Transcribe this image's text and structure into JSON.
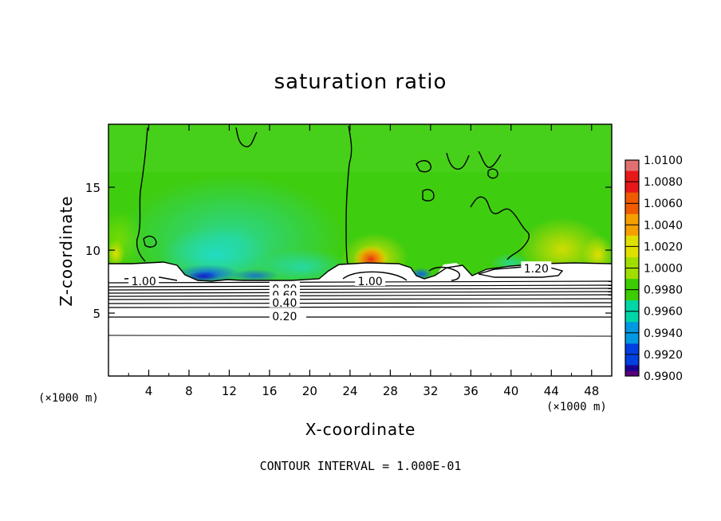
{
  "chart_data": {
    "type": "heatmap",
    "title": "saturation ratio",
    "xlabel": "X-coordinate",
    "ylabel": "Z-coordinate",
    "x_units": "(×1000 m)",
    "y_units": "(×1000 m)",
    "xlim": [
      0,
      50
    ],
    "ylim": [
      0,
      20
    ],
    "x_ticks": [
      "4",
      "8",
      "12",
      "16",
      "20",
      "24",
      "28",
      "32",
      "36",
      "40",
      "44",
      "48"
    ],
    "y_ticks": [
      "5",
      "10",
      "15"
    ],
    "colorbar": {
      "labels": [
        "1.0100",
        "1.0080",
        "1.0060",
        "1.0040",
        "1.0020",
        "1.0000",
        "0.9980",
        "0.9960",
        "0.9940",
        "0.9920",
        "0.9900"
      ],
      "colors": [
        "#e07070",
        "#e81818",
        "#f05a00",
        "#f5a000",
        "#e0e000",
        "#a0de00",
        "#3ccc00",
        "#00d6a8",
        "#0098e0",
        "#0040e0",
        "#1a0090",
        "#5a007a"
      ]
    },
    "contour_labels": [
      {
        "text": "1.00",
        "x": 3.5,
        "y": 7.6
      },
      {
        "text": "1.00",
        "x": 26,
        "y": 7.6
      },
      {
        "text": "1.20",
        "x": 42.5,
        "y": 8.6
      },
      {
        "text": "0.80",
        "x": 17.5,
        "y": 7.0
      },
      {
        "text": "0.60",
        "x": 17.5,
        "y": 6.5
      },
      {
        "text": "0.40",
        "x": 17.5,
        "y": 5.9
      },
      {
        "text": "0.20",
        "x": 17.5,
        "y": 4.8
      }
    ],
    "footer": "CONTOUR INTERVAL = 1.000E-01"
  }
}
